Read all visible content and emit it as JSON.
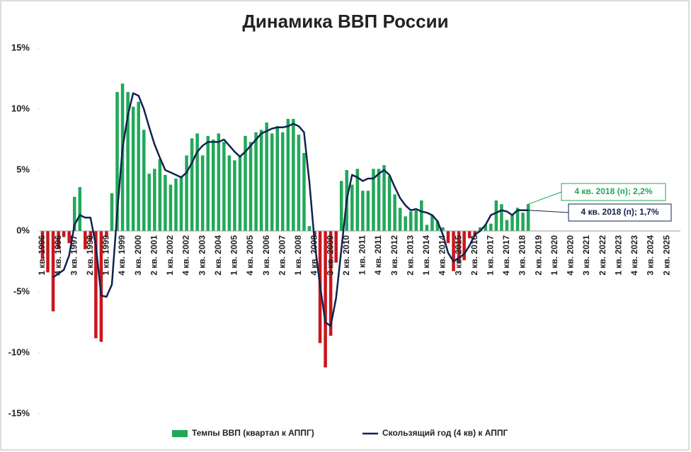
{
  "chart_data": {
    "type": "bar_line",
    "title": "Динамика ВВП России",
    "categories": [
      "1 кв. 1996",
      null,
      null,
      "4 кв. 1996",
      null,
      null,
      "3 кв. 1997",
      null,
      null,
      "2 кв. 1998",
      null,
      null,
      "1 кв. 1999",
      null,
      null,
      "4 кв. 1999",
      null,
      null,
      "3 кв. 2000",
      null,
      null,
      "2 кв. 2001",
      null,
      null,
      "1 кв. 2002",
      null,
      null,
      "4 кв. 2002",
      null,
      null,
      "3 кв. 2003",
      null,
      null,
      "2 кв. 2004",
      null,
      null,
      "1 кв. 2005",
      null,
      null,
      "4 кв. 2005",
      null,
      null,
      "3 кв. 2006",
      null,
      null,
      "2 кв. 2007",
      null,
      null,
      "1 кв. 2008",
      null,
      null,
      "4 кв. 2008",
      null,
      null,
      "3 кв. 2009",
      null,
      null,
      "2 кв. 2010",
      null,
      null,
      "1 кв. 2011",
      null,
      null,
      "4 кв. 2011",
      null,
      null,
      "3 кв. 2012",
      null,
      null,
      "2 кв. 2013",
      null,
      null,
      "1 кв. 2014",
      null,
      null,
      "4 кв. 2014",
      null,
      null,
      "3 кв. 2015",
      null,
      null,
      "2 кв. 2016",
      null,
      null,
      "1 кв. 2017",
      null,
      null,
      "4 кв. 2017",
      null,
      null,
      "3 кв. 2018",
      null,
      null,
      "2 кв. 2019",
      null,
      null,
      "1 кв. 2020",
      null,
      null,
      "4 кв. 2020",
      null,
      null,
      "3 кв. 2021",
      null,
      null,
      "2 кв. 2022",
      null,
      null,
      "1 кв. 2023",
      null,
      null,
      "4 кв. 2023",
      null,
      null,
      "3 кв. 2024",
      null,
      null,
      "2 кв. 2025",
      null,
      null
    ],
    "series": [
      {
        "name": "Темпы ВВП (квартал к АППГ)",
        "type": "bar",
        "color": "#21a85a",
        "negative_color": "#c8161d",
        "values": [
          -2.3,
          -3.4,
          -6.6,
          -1.5,
          -0.5,
          -1.0,
          2.8,
          3.6,
          -1.5,
          -0.8,
          -8.8,
          -9.1,
          -0.5,
          3.1,
          11.4,
          12.1,
          11.4,
          10.2,
          10.6,
          8.3,
          4.7,
          5.1,
          5.9,
          4.6,
          3.8,
          4.3,
          4.5,
          6.2,
          7.6,
          8.0,
          6.2,
          7.8,
          7.5,
          8.0,
          7.3,
          6.2,
          5.8,
          6.2,
          7.8,
          7.3,
          8.1,
          8.3,
          8.9,
          8.0,
          8.6,
          8.1,
          9.2,
          9.2,
          7.9,
          6.4,
          0.4,
          -0.5,
          -9.2,
          -11.2,
          -8.6,
          -2.6,
          4.1,
          5.0,
          3.8,
          5.1,
          3.3,
          3.3,
          5.1,
          5.1,
          5.4,
          4.5,
          3.0,
          1.9,
          1.2,
          1.6,
          1.7,
          2.5,
          0.5,
          1.3,
          0.8,
          0.3,
          -1.0,
          -3.3,
          -2.6,
          -2.4,
          -0.6,
          -0.4,
          0.3,
          0.5,
          0.6,
          2.5,
          2.2,
          0.9,
          1.3,
          1.9,
          1.5,
          2.2,
          null,
          null,
          null,
          null,
          null,
          null,
          null,
          null,
          null,
          null,
          null,
          null,
          null,
          null,
          null,
          null,
          null,
          null,
          null,
          null,
          null,
          null,
          null,
          null,
          null,
          null,
          null,
          null
        ]
      },
      {
        "name": "Скользящий год (4 кв) к АППГ",
        "type": "line",
        "color": "#10224f",
        "values": [
          null,
          null,
          -3.8,
          -3.5,
          -3.2,
          -2.0,
          0.5,
          1.3,
          1.1,
          1.1,
          -1.2,
          -5.3,
          -5.4,
          -4.4,
          1.5,
          6.8,
          9.5,
          11.3,
          11.1,
          10.0,
          8.5,
          7.1,
          6.0,
          5.0,
          4.8,
          4.6,
          4.4,
          4.8,
          5.6,
          6.5,
          7.0,
          7.3,
          7.3,
          7.3,
          7.5,
          7.0,
          6.5,
          6.1,
          6.5,
          7.0,
          7.5,
          8.0,
          8.2,
          8.4,
          8.5,
          8.5,
          8.6,
          8.8,
          8.6,
          8.1,
          4.0,
          -1.0,
          -4.5,
          -7.5,
          -7.8,
          -5.5,
          -1.5,
          2.6,
          4.6,
          4.4,
          4.1,
          4.3,
          4.3,
          4.7,
          5.0,
          4.6,
          3.6,
          2.7,
          2.1,
          1.7,
          1.8,
          1.6,
          1.5,
          1.3,
          0.8,
          -0.3,
          -1.8,
          -2.5,
          -2.2,
          -1.9,
          -1.2,
          -0.3,
          0.0,
          0.5,
          1.3,
          1.5,
          1.7,
          1.6,
          1.3,
          1.7,
          1.7,
          1.7,
          null,
          null,
          null,
          null,
          null,
          null,
          null,
          null,
          null,
          null,
          null,
          null,
          null,
          null,
          null,
          null,
          null,
          null,
          null,
          null,
          null,
          null,
          null,
          null,
          null,
          null,
          null,
          null
        ]
      }
    ],
    "annotations": [
      {
        "text": "4 кв. 2018 (п); 2,2%",
        "series": 0,
        "color": "#21a85a"
      },
      {
        "text": "4 кв. 2018 (п); 1,7%",
        "series": 1,
        "color": "#10224f"
      }
    ],
    "ylim": [
      -15,
      15
    ],
    "yticks": [
      {
        "value": -15,
        "label": "-15%"
      },
      {
        "value": -10,
        "label": "-10%"
      },
      {
        "value": -5,
        "label": "-5%"
      },
      {
        "value": 0,
        "label": "0%"
      },
      {
        "value": 5,
        "label": "5%"
      },
      {
        "value": 10,
        "label": "10%"
      },
      {
        "value": 15,
        "label": "15%"
      }
    ],
    "legend": "bottom"
  }
}
